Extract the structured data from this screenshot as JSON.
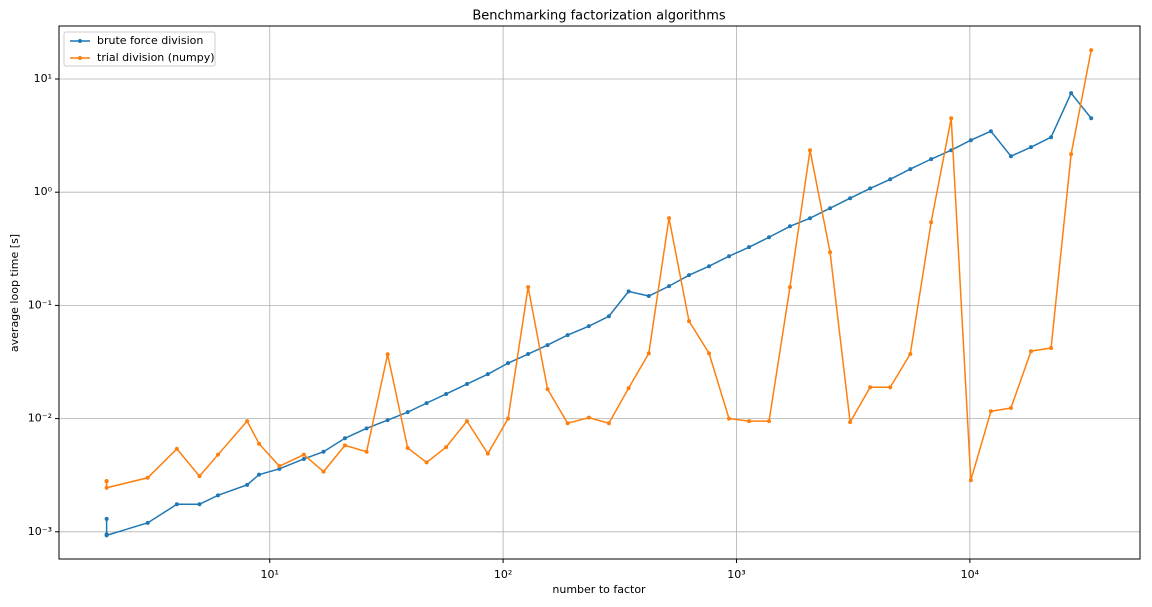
{
  "chart_data": {
    "type": "line",
    "title": "Benchmarking factorization algorithms",
    "x_label": "number to factor",
    "y_label": "average loop time [s]",
    "x_scale": "log",
    "y_scale": "log",
    "grid": true,
    "legend": "upper left",
    "x": [
      2,
      2,
      2,
      3,
      4,
      5,
      6,
      8,
      9,
      11,
      14,
      17,
      21,
      26,
      32,
      39,
      47,
      57,
      70,
      86,
      105,
      128,
      155,
      189,
      233,
      284,
      345,
      421,
      514,
      626,
      763,
      929,
      1132,
      1379,
      1695,
      2066,
      2518,
      3069,
      3740,
      4558,
      5556,
      6826,
      8321,
      10099,
      12309,
      15003,
      18286,
      22289,
      27167,
      33113
    ],
    "series": [
      {
        "name": "brute force division",
        "color": "#1f77b4",
        "values": [
          0.0013,
          0.00095,
          0.00093,
          0.0012,
          0.00175,
          0.00175,
          0.0021,
          0.0026,
          0.0032,
          0.0036,
          0.0044,
          0.0051,
          0.0067,
          0.0082,
          0.0097,
          0.0114,
          0.0137,
          0.0165,
          0.0202,
          0.0247,
          0.0309,
          0.0372,
          0.0446,
          0.0547,
          0.0656,
          0.0802,
          0.133,
          0.121,
          0.148,
          0.185,
          0.222,
          0.272,
          0.327,
          0.4,
          0.5,
          0.589,
          0.722,
          0.885,
          1.08,
          1.3,
          1.6,
          1.96,
          2.35,
          2.88,
          3.46,
          2.08,
          2.5,
          3.06,
          7.5,
          4.5
        ]
      },
      {
        "name": "trial division (numpy)",
        "color": "#ff7f0e",
        "values": [
          0.0028,
          0.0028,
          0.00245,
          0.003,
          0.0054,
          0.0031,
          0.0048,
          0.0095,
          0.006,
          0.0038,
          0.0048,
          0.0034,
          0.0058,
          0.0051,
          0.037,
          0.0055,
          0.0041,
          0.0056,
          0.0095,
          0.0049,
          0.01,
          0.145,
          0.0182,
          0.0091,
          0.0102,
          0.0091,
          0.0186,
          0.0377,
          0.59,
          0.0726,
          0.0377,
          0.01,
          0.0095,
          0.0095,
          0.145,
          2.35,
          0.295,
          0.0093,
          0.0189,
          0.0189,
          0.0372,
          0.543,
          4.5,
          0.00285,
          0.0116,
          0.0124,
          0.0394,
          0.042,
          2.17,
          18
        ]
      }
    ],
    "xlim": [
      1.25,
      53600
    ],
    "ylim": [
      0.000575,
      29.4
    ],
    "xticks": [
      {
        "value": 10,
        "label": "10¹"
      },
      {
        "value": 100,
        "label": "10²"
      },
      {
        "value": 1000,
        "label": "10³"
      },
      {
        "value": 10000,
        "label": "10⁴"
      }
    ],
    "yticks": [
      {
        "value": 0.001,
        "label": "10⁻³"
      },
      {
        "value": 0.01,
        "label": "10⁻²"
      },
      {
        "value": 0.1,
        "label": "10⁻¹"
      },
      {
        "value": 1,
        "label": "10⁰"
      },
      {
        "value": 10,
        "label": "10¹"
      }
    ]
  }
}
